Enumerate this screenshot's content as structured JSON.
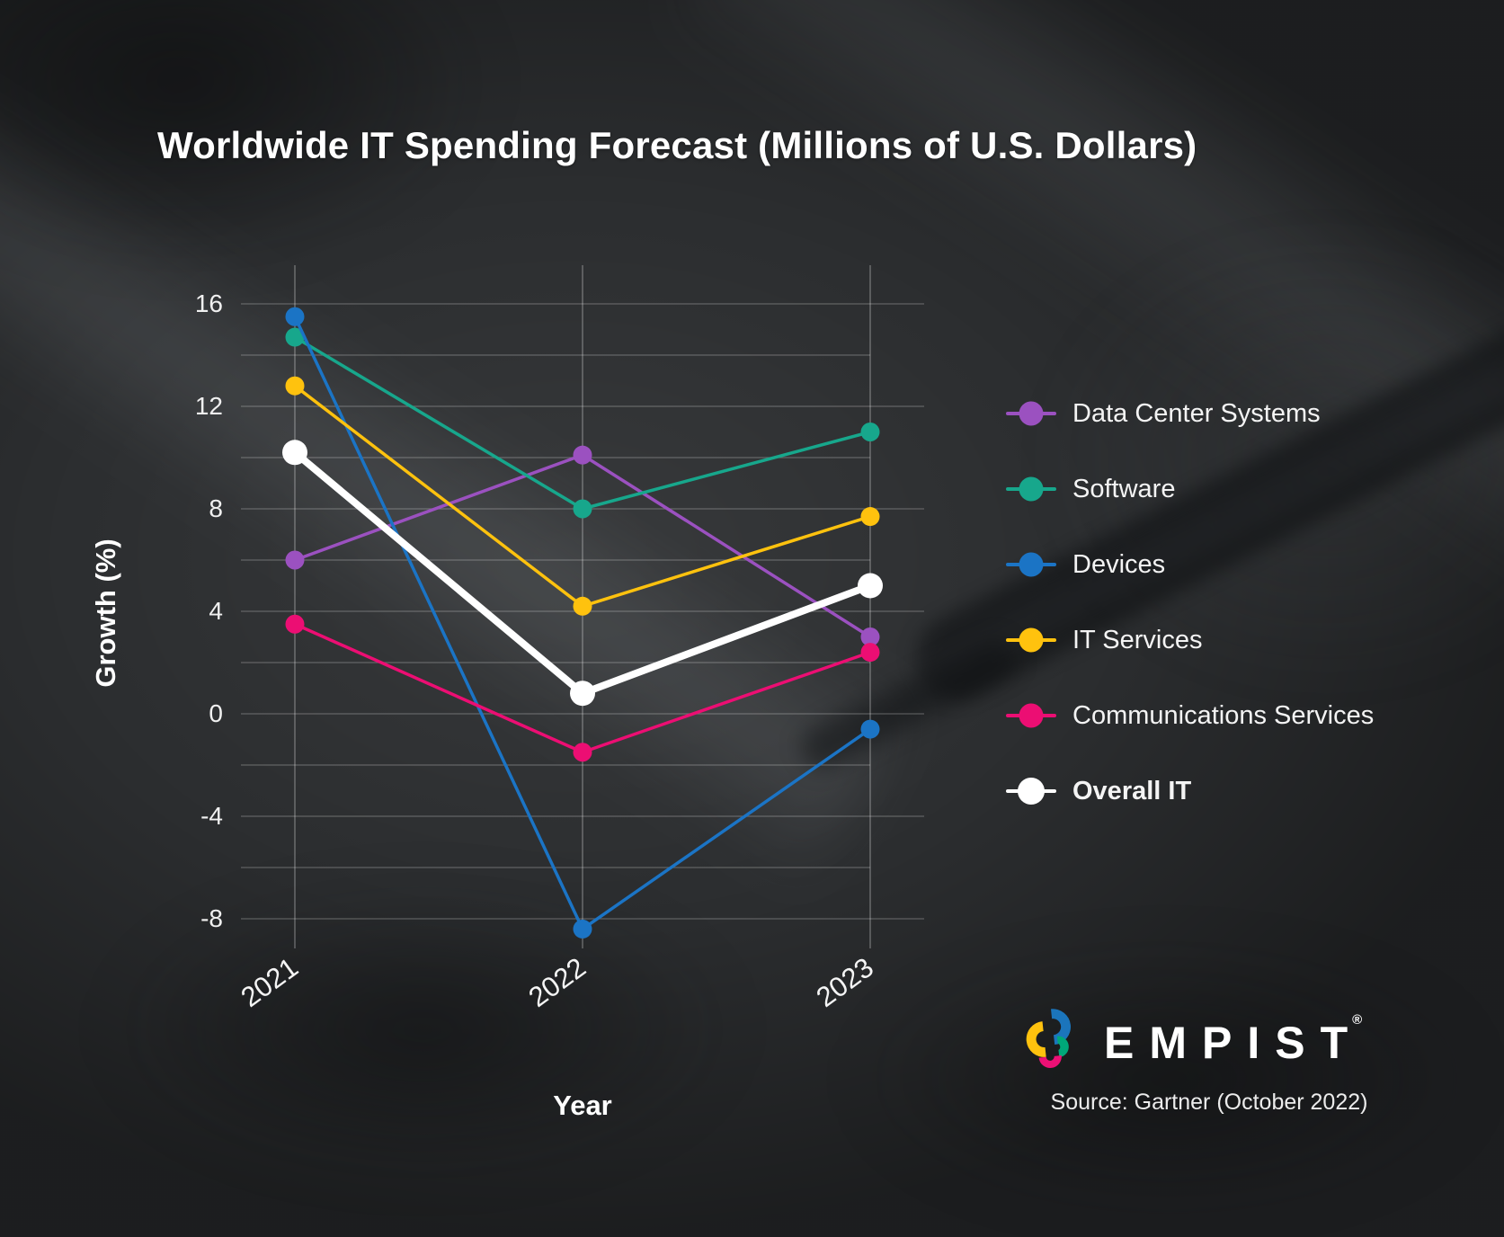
{
  "title": "Worldwide IT Spending Forecast (Millions of U.S. Dollars)",
  "chart_data": {
    "type": "line",
    "categories": [
      "2021",
      "2022",
      "2023"
    ],
    "series": [
      {
        "name": "Data Center Systems",
        "color": "#9b51c0",
        "values": [
          6.0,
          10.1,
          3.0
        ]
      },
      {
        "name": "Software",
        "color": "#17a78c",
        "values": [
          14.7,
          8.0,
          11.0
        ]
      },
      {
        "name": "Devices",
        "color": "#1b74c5",
        "values": [
          15.5,
          -8.4,
          -0.6
        ]
      },
      {
        "name": "IT Services",
        "color": "#ffc20e",
        "values": [
          12.8,
          4.2,
          7.7
        ]
      },
      {
        "name": "Communications Services",
        "color": "#ec0e73",
        "values": [
          3.5,
          -1.5,
          2.4
        ]
      },
      {
        "name": "Overall IT",
        "color": "#ffffff",
        "values": [
          10.2,
          0.8,
          5.0
        ],
        "emphasis": true
      }
    ],
    "xlabel": "Year",
    "ylabel": "Growth (%)",
    "yticks": [
      16,
      12,
      8,
      4,
      0,
      -4,
      -8
    ],
    "gridline_step": 2,
    "ylim": [
      -9,
      17
    ],
    "grid": true,
    "legend_position": "right"
  },
  "legend_note": "legend entries mirror chart_data.series order",
  "logo": {
    "brand": "EMPIST",
    "registered": "®",
    "source": "Source: Gartner (October 2022)",
    "mark_colors": [
      "#ffc20e",
      "#1b75bc",
      "#00a779",
      "#ec1075"
    ]
  },
  "style": {
    "background": "#2b2d2f",
    "gridline_color": "rgba(255,255,255,0.25)",
    "axis_line_color": "rgba(255,255,255,0.35)",
    "text_color": "#ffffff"
  }
}
